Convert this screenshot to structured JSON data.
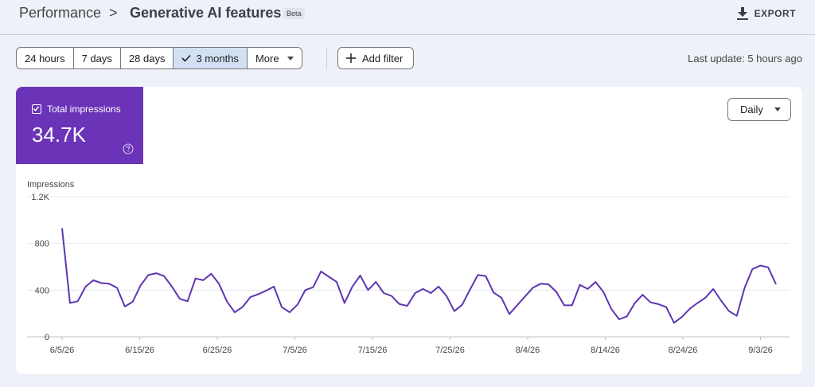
{
  "header": {
    "breadcrumb_root": "Performance",
    "breadcrumb_separator": ">",
    "title": "Generative AI features",
    "badge": "Beta",
    "export_label": "EXPORT",
    "export_icon": "download-icon"
  },
  "toolbar": {
    "ranges": [
      {
        "label": "24 hours",
        "selected": false
      },
      {
        "label": "7 days",
        "selected": false
      },
      {
        "label": "28 days",
        "selected": false
      },
      {
        "label": "3 months",
        "selected": true
      },
      {
        "label": "More",
        "selected": false
      }
    ],
    "add_filter_label": "Add filter",
    "last_update": "Last update: 5 hours ago"
  },
  "metric": {
    "label": "Total impressions",
    "value": "34.7K",
    "checked": true,
    "color": "#6a33b8"
  },
  "granularity": {
    "label": "Daily"
  },
  "chart_data": {
    "type": "line",
    "ylabel": "Impressions",
    "ylim": [
      0,
      1200
    ],
    "y_ticks": [
      0,
      400,
      800,
      1200
    ],
    "y_tick_labels": [
      "0",
      "400",
      "800",
      "1.2K"
    ],
    "grid": true,
    "x_tick_labels": [
      "6/5/26",
      "6/15/26",
      "6/25/26",
      "7/5/26",
      "7/15/26",
      "7/25/26",
      "8/4/26",
      "8/14/26",
      "8/24/26",
      "9/3/26"
    ],
    "x_start": "2026-06-05",
    "x_end": "2026-09-05",
    "series": [
      {
        "name": "Total impressions",
        "color": "#5e35b1",
        "values": [
          930,
          290,
          305,
          430,
          485,
          460,
          455,
          420,
          260,
          300,
          440,
          530,
          545,
          520,
          430,
          325,
          305,
          500,
          485,
          540,
          455,
          305,
          210,
          255,
          340,
          365,
          395,
          430,
          255,
          210,
          275,
          400,
          425,
          560,
          515,
          470,
          290,
          430,
          525,
          400,
          470,
          375,
          350,
          280,
          265,
          375,
          410,
          375,
          430,
          350,
          220,
          275,
          405,
          530,
          520,
          380,
          335,
          195,
          270,
          345,
          420,
          455,
          450,
          385,
          270,
          270,
          445,
          410,
          470,
          385,
          240,
          150,
          175,
          290,
          360,
          295,
          280,
          255,
          120,
          170,
          240,
          290,
          335,
          410,
          310,
          220,
          180,
          420,
          580,
          610,
          595,
          450
        ]
      }
    ]
  }
}
